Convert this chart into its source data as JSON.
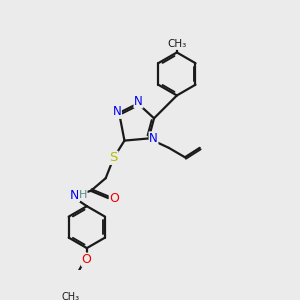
{
  "bg_color": "#ebebeb",
  "bond_color": "#1a1a1a",
  "atom_colors": {
    "N": "#0000ee",
    "O": "#ee0000",
    "S": "#bbbb00",
    "C": "#1a1a1a",
    "H": "#5a8a8a"
  },
  "bond_width": 1.6,
  "font_size_atoms": 8.5
}
